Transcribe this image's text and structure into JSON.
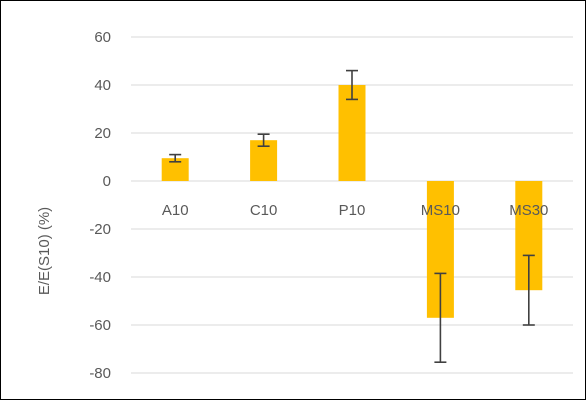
{
  "chart_data": {
    "type": "bar",
    "title": "",
    "xlabel": "",
    "ylabel": "E/E(S10) (%)",
    "categories": [
      "A10",
      "C10",
      "P10",
      "MS10",
      "MS30"
    ],
    "series": [
      {
        "values": [
          9.5,
          17,
          40,
          -57,
          -45.5
        ],
        "error": [
          1.5,
          2.5,
          6,
          18.5,
          14.5
        ],
        "color": "#FFC000"
      }
    ],
    "ylim": [
      -80,
      60
    ],
    "yticks": [
      60,
      40,
      20,
      0,
      -20,
      -40,
      -60,
      -80
    ],
    "grid": true,
    "grid_color": "#D9D9D9",
    "error_bar_color": "#404040",
    "legend": "none"
  }
}
